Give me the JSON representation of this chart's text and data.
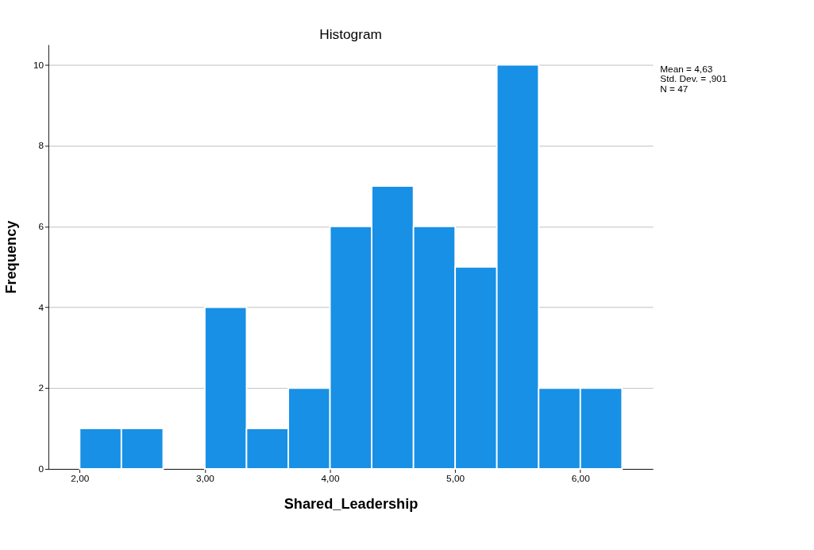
{
  "chart_data": {
    "type": "histogram",
    "title": "Histogram",
    "xlabel": "Shared_Leadership",
    "ylabel": "Frequency",
    "bins": [
      2,
      2.333,
      2.667,
      3,
      3.333,
      3.667,
      4,
      4.333,
      4.667,
      5,
      5.333,
      5.667,
      6,
      6.333
    ],
    "values": [
      1,
      1,
      0,
      4,
      1,
      2,
      6,
      7,
      6,
      5,
      10,
      2,
      2
    ],
    "color": "#1790e6",
    "xlim": [
      1.75,
      6.58
    ],
    "ylim": [
      0,
      10.5
    ],
    "xticks": [
      {
        "value": 2,
        "label": "2,00"
      },
      {
        "value": 3,
        "label": "3,00"
      },
      {
        "value": 4,
        "label": "4,00"
      },
      {
        "value": 5,
        "label": "5,00"
      },
      {
        "value": 6,
        "label": "6,00"
      }
    ],
    "yticks": [
      0,
      2,
      4,
      6,
      8,
      10
    ],
    "grid": "y",
    "annotations": [
      "Mean = 4,63",
      "Std. Dev. = ,901",
      "N = 47"
    ]
  }
}
